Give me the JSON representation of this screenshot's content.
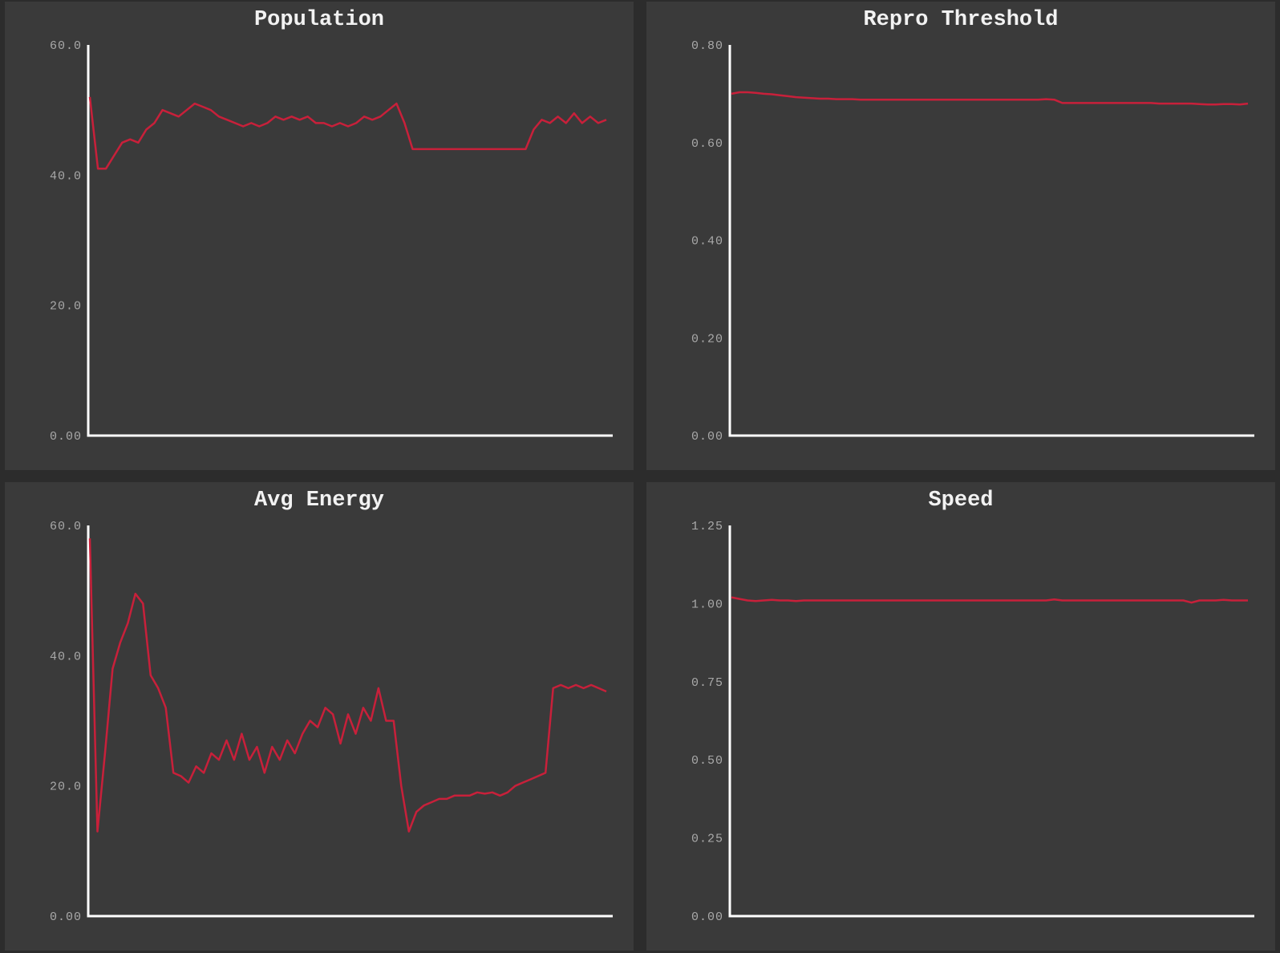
{
  "chart_data": [
    {
      "type": "line",
      "title": "Population",
      "ylim": [
        0,
        60
      ],
      "yticks": [
        "0.00",
        "20.0",
        "40.0",
        "60.0"
      ],
      "ytick_values": [
        0,
        20,
        40,
        60
      ],
      "grid": false,
      "color": "#c8203a",
      "y": [
        52,
        41,
        41,
        43,
        45,
        45.5,
        45,
        47,
        48,
        50,
        49.5,
        49,
        50,
        51,
        50.5,
        50,
        49,
        48.5,
        48,
        47.5,
        48,
        47.5,
        48,
        49,
        48.5,
        49,
        48.5,
        49,
        48,
        48,
        47.5,
        48,
        47.5,
        48,
        49,
        48.5,
        49,
        50,
        51,
        48,
        44,
        44,
        44,
        44,
        44,
        44,
        44,
        44,
        44,
        44,
        44,
        44,
        44,
        44,
        44,
        47,
        48.5,
        48,
        49,
        48,
        49.5,
        48,
        49,
        48,
        48.5
      ]
    },
    {
      "type": "line",
      "title": "Repro Threshold",
      "ylim": [
        0,
        0.8
      ],
      "yticks": [
        "0.00",
        "0.20",
        "0.40",
        "0.60",
        "0.80"
      ],
      "ytick_values": [
        0,
        0.2,
        0.4,
        0.6,
        0.8
      ],
      "grid": false,
      "color": "#c8203a",
      "y": [
        0.7,
        0.703,
        0.703,
        0.702,
        0.7,
        0.699,
        0.697,
        0.695,
        0.693,
        0.692,
        0.691,
        0.69,
        0.69,
        0.689,
        0.689,
        0.689,
        0.688,
        0.688,
        0.688,
        0.688,
        0.688,
        0.688,
        0.688,
        0.688,
        0.688,
        0.688,
        0.688,
        0.688,
        0.688,
        0.688,
        0.688,
        0.688,
        0.688,
        0.688,
        0.688,
        0.688,
        0.688,
        0.688,
        0.688,
        0.689,
        0.688,
        0.681,
        0.681,
        0.681,
        0.681,
        0.681,
        0.681,
        0.681,
        0.681,
        0.681,
        0.681,
        0.681,
        0.681,
        0.68,
        0.68,
        0.68,
        0.68,
        0.68,
        0.679,
        0.678,
        0.678,
        0.679,
        0.679,
        0.678,
        0.68
      ]
    },
    {
      "type": "line",
      "title": "Avg Energy",
      "ylim": [
        0,
        60
      ],
      "yticks": [
        "0.00",
        "20.0",
        "40.0",
        "60.0"
      ],
      "ytick_values": [
        0,
        20,
        40,
        60
      ],
      "grid": false,
      "color": "#c8203a",
      "y": [
        58,
        13,
        25,
        38,
        42,
        45,
        49.5,
        48,
        37,
        35,
        32,
        22,
        21.5,
        20.5,
        23,
        22,
        25,
        24,
        27,
        24,
        28,
        24,
        26,
        22,
        26,
        24,
        27,
        25,
        28,
        30,
        29,
        32,
        31,
        26.5,
        31,
        28,
        32,
        30,
        35,
        30,
        30,
        20,
        13,
        16,
        17,
        17.5,
        18,
        18,
        18.5,
        18.5,
        18.5,
        19,
        18.8,
        19,
        18.5,
        19,
        20,
        20.5,
        21,
        21.5,
        22,
        35,
        35.5,
        35,
        35.5,
        35,
        35.5,
        35,
        34.5
      ]
    },
    {
      "type": "line",
      "title": "Speed",
      "ylim": [
        0,
        1.25
      ],
      "yticks": [
        "0.00",
        "0.25",
        "0.50",
        "0.75",
        "1.00",
        "1.25"
      ],
      "ytick_values": [
        0,
        0.25,
        0.5,
        0.75,
        1.0,
        1.25
      ],
      "grid": false,
      "color": "#c8203a",
      "y": [
        1.02,
        1.015,
        1.01,
        1.008,
        1.01,
        1.012,
        1.01,
        1.01,
        1.008,
        1.01,
        1.01,
        1.01,
        1.01,
        1.01,
        1.01,
        1.01,
        1.01,
        1.01,
        1.01,
        1.01,
        1.01,
        1.01,
        1.01,
        1.01,
        1.01,
        1.01,
        1.01,
        1.01,
        1.01,
        1.01,
        1.01,
        1.01,
        1.01,
        1.01,
        1.01,
        1.01,
        1.01,
        1.01,
        1.01,
        1.01,
        1.013,
        1.01,
        1.01,
        1.01,
        1.01,
        1.01,
        1.01,
        1.01,
        1.01,
        1.01,
        1.01,
        1.01,
        1.01,
        1.01,
        1.01,
        1.01,
        1.01,
        1.003,
        1.01,
        1.01,
        1.01,
        1.012,
        1.01,
        1.01,
        1.01
      ]
    }
  ]
}
